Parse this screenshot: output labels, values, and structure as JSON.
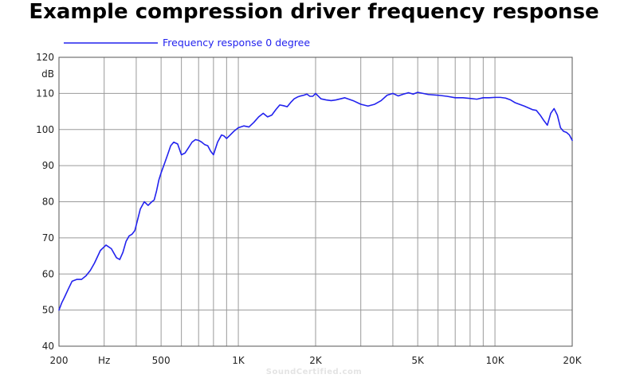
{
  "chart_data": {
    "type": "line",
    "title": "Example compression driver frequency response",
    "ylabel": "dB",
    "xscale": "log",
    "xlim": [
      200,
      20000
    ],
    "ylim": [
      40,
      120
    ],
    "grid": true,
    "legend_position": "top-left",
    "x_tick_labels": [
      {
        "value": 200,
        "label": "200"
      },
      {
        "value": 300,
        "label": "Hz"
      },
      {
        "value": 500,
        "label": "500"
      },
      {
        "value": 1000,
        "label": "1K"
      },
      {
        "value": 2000,
        "label": "2K"
      },
      {
        "value": 5000,
        "label": "5K"
      },
      {
        "value": 10000,
        "label": "10K"
      },
      {
        "value": 20000,
        "label": "20K"
      }
    ],
    "y_ticks": [
      40,
      50,
      60,
      70,
      80,
      90,
      100,
      110,
      120
    ],
    "series": [
      {
        "name": "Frequency response 0 degree",
        "color": "#2222ee",
        "x": [
          200,
          205,
          210,
          218,
          225,
          235,
          245,
          255,
          265,
          275,
          290,
          305,
          320,
          335,
          345,
          355,
          365,
          375,
          385,
          395,
          405,
          415,
          430,
          445,
          460,
          470,
          480,
          490,
          500,
          515,
          530,
          545,
          560,
          580,
          600,
          620,
          640,
          660,
          680,
          700,
          720,
          740,
          760,
          780,
          800,
          830,
          860,
          880,
          900,
          930,
          960,
          1000,
          1050,
          1100,
          1150,
          1200,
          1250,
          1300,
          1350,
          1400,
          1450,
          1500,
          1550,
          1600,
          1650,
          1700,
          1750,
          1800,
          1850,
          1900,
          1950,
          2000,
          2100,
          2200,
          2300,
          2400,
          2500,
          2600,
          2800,
          3000,
          3200,
          3400,
          3600,
          3800,
          4000,
          4200,
          4400,
          4600,
          4800,
          5000,
          5500,
          6000,
          6500,
          7000,
          7500,
          8000,
          8500,
          9000,
          9500,
          10000,
          10500,
          11000,
          11500,
          12000,
          13000,
          14000,
          14500,
          15000,
          15500,
          16000,
          16500,
          17000,
          17500,
          18000,
          18500,
          19000,
          19500,
          20000
        ],
        "y": [
          50,
          52,
          53.5,
          56,
          58,
          58.5,
          58.5,
          59.5,
          61,
          63,
          66.5,
          68,
          67,
          64.5,
          64,
          66,
          69,
          70.5,
          71,
          72,
          75,
          78,
          80,
          79,
          80,
          80.5,
          83,
          86,
          88,
          90.5,
          93,
          95.5,
          96.5,
          96,
          93,
          93.5,
          95,
          96.5,
          97.2,
          97,
          96.5,
          95.8,
          95.5,
          94,
          93,
          96.5,
          98.5,
          98.2,
          97.5,
          98.5,
          99.5,
          100.5,
          101,
          100.7,
          102,
          103.5,
          104.5,
          103.5,
          104,
          105.5,
          106.8,
          106.6,
          106.3,
          107.5,
          108.5,
          109,
          109.3,
          109.5,
          109.8,
          109.2,
          109.2,
          110,
          108.5,
          108.2,
          108,
          108.2,
          108.5,
          108.8,
          108,
          107,
          106.5,
          107,
          108,
          109.5,
          110,
          109.3,
          109.8,
          110.2,
          109.8,
          110.3,
          109.7,
          109.5,
          109.2,
          108.8,
          108.8,
          108.6,
          108.4,
          108.8,
          108.8,
          108.9,
          108.9,
          108.7,
          108.2,
          107.4,
          106.5,
          105.5,
          105.3,
          104,
          102.5,
          101.2,
          104.5,
          105.8,
          104,
          100.5,
          99.5,
          99.2,
          98.5,
          97
        ]
      }
    ]
  },
  "watermark": "SoundCertified.com"
}
